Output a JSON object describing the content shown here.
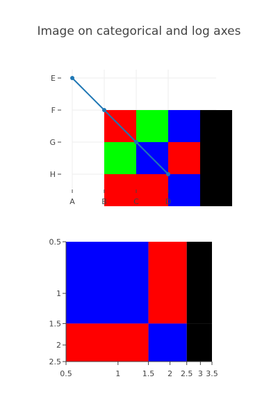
{
  "chart_data": [
    {
      "type": "heatmap",
      "title": "Image on categorical and log axes",
      "x_categories": [
        "A",
        "B",
        "C",
        "D"
      ],
      "y_categories": [
        "E",
        "F",
        "G",
        "H"
      ],
      "image": {
        "rows": [
          [
            "red",
            "green",
            "blue",
            "black"
          ],
          [
            "green",
            "blue",
            "red",
            "black"
          ],
          [
            "red",
            "red",
            "blue",
            "black"
          ]
        ],
        "x_start": 1.5,
        "y_start": 1.5,
        "colors": {
          "red": "#ff0000",
          "green": "#00ff00",
          "blue": "#0000ff",
          "black": "#000000"
        }
      },
      "line_series": {
        "x": [
          "A",
          "B",
          "C",
          "D"
        ],
        "y": [
          "E",
          "F",
          "G",
          "H"
        ],
        "color": "#1f77b4"
      },
      "grid": true
    },
    {
      "type": "heatmap",
      "x_scale": "log",
      "y_scale": "log",
      "x_ticks": [
        "0.5",
        "1",
        "1.5",
        "2",
        "2.5",
        "3",
        "3.5"
      ],
      "y_ticks": [
        "0.5",
        "1",
        "1.5",
        "2",
        "2.5"
      ],
      "x_range": [
        0.5,
        3.5
      ],
      "y_range": [
        0.5,
        2.5
      ],
      "y_reversed": true,
      "cells": [
        {
          "x0": 0.5,
          "x1": 1.5,
          "y0": 0.5,
          "y1": 1.5,
          "color": "#0000ff"
        },
        {
          "x0": 1.5,
          "x1": 2.5,
          "y0": 0.5,
          "y1": 1.5,
          "color": "#ff0000"
        },
        {
          "x0": 2.5,
          "x1": 3.5,
          "y0": 0.5,
          "y1": 1.5,
          "color": "#000000"
        },
        {
          "x0": 0.5,
          "x1": 1.5,
          "y0": 1.5,
          "y1": 2.5,
          "color": "#ff0000"
        },
        {
          "x0": 1.5,
          "x1": 2.5,
          "y0": 1.5,
          "y1": 2.5,
          "color": "#0000ff"
        },
        {
          "x0": 2.5,
          "x1": 3.5,
          "y0": 1.5,
          "y1": 2.5,
          "color": "#000000"
        }
      ]
    }
  ]
}
